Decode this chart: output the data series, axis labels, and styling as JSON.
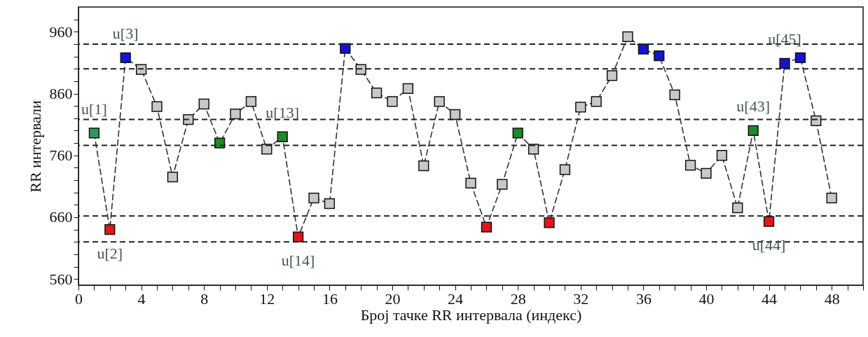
{
  "chart_data": {
    "type": "line",
    "xlabel": "Број тачке RR интервала (индекс)",
    "ylabel": "RR интервали",
    "x": [
      1,
      2,
      3,
      4,
      5,
      6,
      7,
      8,
      9,
      10,
      11,
      12,
      13,
      14,
      15,
      16,
      17,
      18,
      19,
      20,
      21,
      22,
      23,
      24,
      25,
      26,
      27,
      28,
      29,
      30,
      31,
      32,
      33,
      34,
      35,
      36,
      37,
      38,
      39,
      40,
      41,
      42,
      43,
      44,
      45,
      46,
      47,
      48
    ],
    "series": [
      {
        "color": "#333333",
        "values": [
          796,
          640,
          918,
          899,
          839,
          725,
          818,
          843,
          780,
          827,
          847,
          770,
          790,
          628,
          691,
          682,
          933,
          899,
          861,
          847,
          868,
          743,
          847,
          826,
          715,
          644,
          713,
          796,
          770,
          651,
          737,
          838,
          847,
          889,
          952,
          932,
          921,
          858,
          744,
          731,
          760,
          675,
          800,
          653,
          909,
          918,
          816,
          691
        ],
        "colors": [
          "#2e9a5a",
          "#e01818",
          "#1414d0",
          "#c8c8c8",
          "#c8c8c8",
          "#c8c8c8",
          "#c8c8c8",
          "#c8c8c8",
          "#1a8a2a",
          "#c8c8c8",
          "#c8c8c8",
          "#c8c8c8",
          "#1a8a2a",
          "#e01818",
          "#c8c8c8",
          "#c8c8c8",
          "#1414d0",
          "#c8c8c8",
          "#c8c8c8",
          "#c8c8c8",
          "#c8c8c8",
          "#c8c8c8",
          "#c8c8c8",
          "#c8c8c8",
          "#c8c8c8",
          "#e01818",
          "#c8c8c8",
          "#1a8a2a",
          "#c8c8c8",
          "#e01818",
          "#c8c8c8",
          "#c8c8c8",
          "#c8c8c8",
          "#c8c8c8",
          "#c8c8c8",
          "#1414d0",
          "#1414d0",
          "#c8c8c8",
          "#c8c8c8",
          "#c8c8c8",
          "#c8c8c8",
          "#c8c8c8",
          "#1a8a2a",
          "#e01818",
          "#1414d0",
          "#1414d0",
          "#c8c8c8",
          "#c8c8c8"
        ]
      }
    ],
    "xlim": [
      0,
      50
    ],
    "xticks": [
      0,
      {
        "value": 1,
        "label": null
      },
      {
        "value": 2,
        "label": null
      },
      {
        "value": 3,
        "label": null
      },
      4,
      {
        "value": 5,
        "label": null
      },
      {
        "value": 6,
        "label": null
      },
      {
        "value": 7,
        "label": null
      },
      8,
      {
        "value": 9,
        "label": null
      },
      {
        "value": 10,
        "label": null
      },
      {
        "value": 11,
        "label": null
      },
      12,
      {
        "value": 13,
        "label": null
      },
      {
        "value": 14,
        "label": null
      },
      {
        "value": 15,
        "label": null
      },
      16,
      {
        "value": 17,
        "label": null
      },
      {
        "value": 18,
        "label": null
      },
      {
        "value": 19,
        "label": null
      },
      20,
      {
        "value": 21,
        "label": null
      },
      {
        "value": 22,
        "label": null
      },
      {
        "value": 23,
        "label": null
      },
      24,
      {
        "value": 25,
        "label": null
      },
      {
        "value": 26,
        "label": null
      },
      {
        "value": 27,
        "label": null
      },
      28,
      {
        "value": 29,
        "label": null
      },
      {
        "value": 30,
        "label": null
      },
      {
        "value": 31,
        "label": null
      },
      32,
      {
        "value": 33,
        "label": null
      },
      {
        "value": 34,
        "label": null
      },
      {
        "value": 35,
        "label": null
      },
      36,
      {
        "value": 37,
        "label": null
      },
      {
        "value": 38,
        "label": null
      },
      {
        "value": 39,
        "label": null
      },
      40,
      {
        "value": 41,
        "label": null
      },
      {
        "value": 42,
        "label": null
      },
      {
        "value": 43,
        "label": null
      },
      44,
      {
        "value": 45,
        "label": null
      },
      {
        "value": 46,
        "label": null
      },
      {
        "value": 47,
        "label": null
      },
      48,
      {
        "value": 49,
        "label": null
      },
      {
        "value": 50,
        "label": null
      }
    ],
    "ylim": [
      550,
      1000
    ],
    "yticks": [
      560,
      {
        "value": 580,
        "label": null
      },
      {
        "value": 600,
        "label": null
      },
      {
        "value": 620,
        "label": null
      },
      {
        "value": 640,
        "label": null
      },
      660,
      {
        "value": 680,
        "label": null
      },
      {
        "value": 700,
        "label": null
      },
      {
        "value": 720,
        "label": null
      },
      {
        "value": 740,
        "label": null
      },
      760,
      {
        "value": 780,
        "label": null
      },
      {
        "value": 800,
        "label": null
      },
      {
        "value": 820,
        "label": null
      },
      {
        "value": 840,
        "label": null
      },
      860,
      {
        "value": 880,
        "label": null
      },
      {
        "value": 900,
        "label": null
      },
      {
        "value": 920,
        "label": null
      },
      {
        "value": 940,
        "label": null
      },
      960,
      {
        "value": 980,
        "label": null
      }
    ],
    "ref_lines": [
      {
        "axis": "y",
        "value": 940,
        "color": "#222222",
        "line_style": "dashed"
      },
      {
        "axis": "y",
        "value": 900,
        "color": "#222222",
        "line_style": "dashed"
      },
      {
        "axis": "y",
        "value": 818,
        "color": "#222222",
        "line_style": "dashed"
      },
      {
        "axis": "y",
        "value": 776,
        "color": "#222222",
        "line_style": "dashed"
      },
      {
        "axis": "y",
        "value": 662,
        "color": "#222222",
        "line_style": "dashed"
      },
      {
        "axis": "y",
        "value": 620,
        "color": "#222222",
        "line_style": "dashed"
      }
    ],
    "annotations": [
      {
        "text": "u[1]",
        "x": 1,
        "y": 796
      },
      {
        "text": "u[2]",
        "x": 2,
        "y": 640
      },
      {
        "text": "u[3]",
        "x": 3,
        "y": 918
      },
      {
        "text": "u[13]",
        "x": 13,
        "y": 790
      },
      {
        "text": "u[14]",
        "x": 14,
        "y": 628
      },
      {
        "text": "u[43]",
        "x": 43,
        "y": 800
      },
      {
        "text": "u[44]",
        "x": 44,
        "y": 653
      },
      {
        "text": "u[45]",
        "x": 45,
        "y": 909
      }
    ],
    "grid": false,
    "marker": "square",
    "line_style": "dashed"
  }
}
